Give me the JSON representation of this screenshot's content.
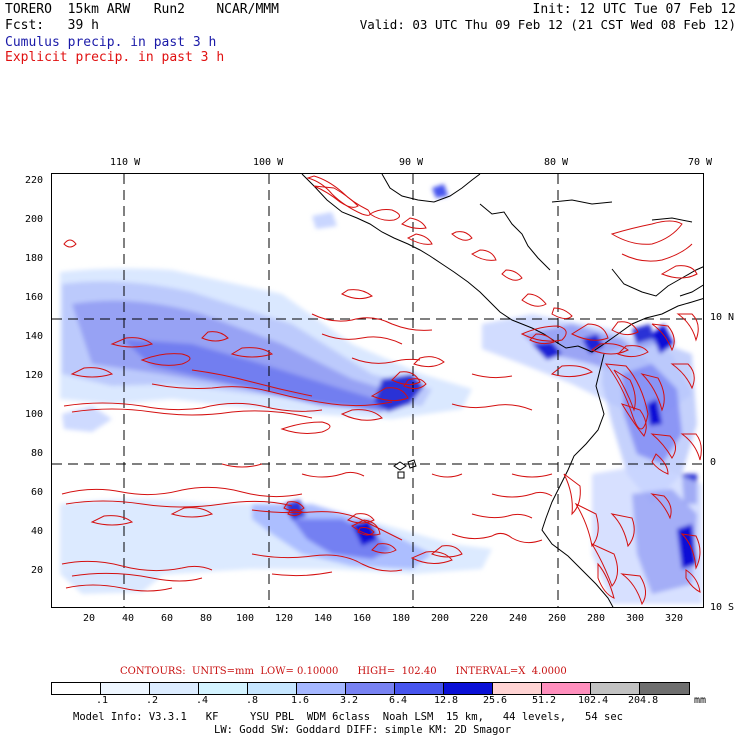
{
  "header": {
    "line1_left": "TORERO  15km ARW   Run2    NCAR/MMM",
    "line1_right": "Init: 12 UTC Tue 07 Feb 12",
    "line2_left": "Fcst:   39 h",
    "line2_right": "Valid: 03 UTC Thu 09 Feb 12 (21 CST Wed 08 Feb 12)",
    "legend_cumulus": "Cumulus precip. in past 3 h",
    "legend_explicit": "Explicit precip. in past 3 h"
  },
  "colors": {
    "cumulus_text": "#1a1aa8",
    "explicit_text": "#e01010",
    "contour": "#d41010",
    "coast": "#000000"
  },
  "map": {
    "top_lon_labels": [
      "110 W",
      "100 W",
      "90 W",
      "80 W",
      "70 W"
    ],
    "right_lat_labels": [
      "10 N",
      "0",
      "10 S"
    ],
    "left_y_ticks": [
      "220",
      "200",
      "180",
      "160",
      "140",
      "120",
      "100",
      "80",
      "60",
      "40",
      "20"
    ],
    "bottom_x_ticks": [
      "20",
      "40",
      "60",
      "80",
      "100",
      "120",
      "140",
      "160",
      "180",
      "200",
      "220",
      "240",
      "260",
      "280",
      "300",
      "320"
    ]
  },
  "colorbar": {
    "contours_caption": "CONTOURS:  UNITS=mm  LOW= 0.10000      HIGH=  102.40      INTERVAL=X  4.0000",
    "labels": [
      ".1",
      ".2",
      ".4",
      ".8",
      "1.6",
      "3.2",
      "6.4",
      "12.8",
      "25.6",
      "51.2",
      "102.4",
      "204.8"
    ],
    "units": "mm",
    "colors": [
      "#ffffff",
      "#eef6ff",
      "#dcecff",
      "#d3f3ff",
      "#c6e6ff",
      "#a5b7ff",
      "#7882f2",
      "#4755ee",
      "#0a10d6",
      "#ffd3d3",
      "#ff8fbd",
      "#c2c2c2",
      "#6e6e6e",
      "#2c2c2c",
      "#d6aaf9"
    ]
  },
  "footer": {
    "line1": "Model Info: V3.3.1   KF     YSU PBL  WDM 6class  Noah LSM  15 km,   44 levels,   54 sec",
    "line2": "LW: Godd SW: Goddard DIFF: simple KM: 2D Smagor"
  }
}
